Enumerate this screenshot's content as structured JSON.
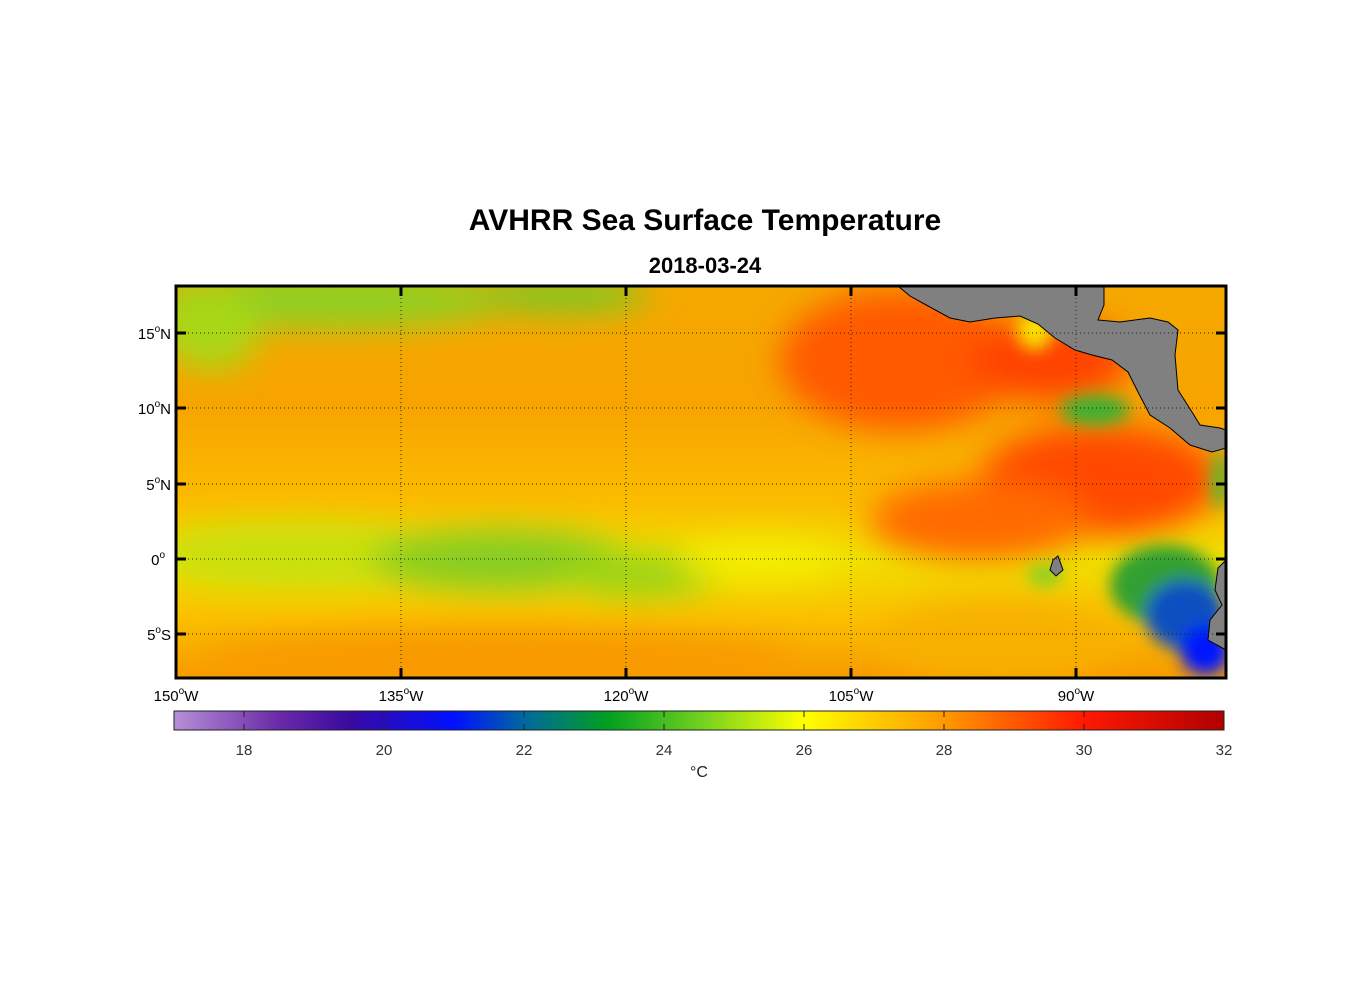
{
  "map": {
    "title": "AVHRR Sea Surface Temperature",
    "subtitle": "2018-03-24",
    "longitude_ticks": [
      {
        "deg": "150",
        "hemi": "W",
        "value": -150
      },
      {
        "deg": "135",
        "hemi": "W",
        "value": -135
      },
      {
        "deg": "120",
        "hemi": "W",
        "value": -120
      },
      {
        "deg": "105",
        "hemi": "W",
        "value": -105
      },
      {
        "deg": "90",
        "hemi": "W",
        "value": -90
      }
    ],
    "latitude_ticks": [
      {
        "deg": "15",
        "hemi": "N",
        "value": 15
      },
      {
        "deg": "10",
        "hemi": "N",
        "value": 10
      },
      {
        "deg": "5",
        "hemi": "N",
        "value": 5
      },
      {
        "deg": "0",
        "hemi": "",
        "value": 0
      },
      {
        "deg": "5",
        "hemi": "S",
        "value": -5
      }
    ],
    "lon_range": [
      -150,
      -80
    ],
    "lat_range": [
      -8,
      18
    ],
    "grid": true,
    "land_color": "#808080"
  },
  "colorbar": {
    "unit": "°C",
    "range": [
      17,
      32
    ],
    "ticks": [
      "18",
      "20",
      "22",
      "24",
      "26",
      "28",
      "30",
      "32"
    ],
    "stops": [
      {
        "v": 17,
        "c": "#b58fd6"
      },
      {
        "v": 18.5,
        "c": "#6a2aa8"
      },
      {
        "v": 19.5,
        "c": "#3a0aa0"
      },
      {
        "v": 21,
        "c": "#0010ff"
      },
      {
        "v": 22,
        "c": "#0068a0"
      },
      {
        "v": 23.2,
        "c": "#00a020"
      },
      {
        "v": 24.5,
        "c": "#70d020"
      },
      {
        "v": 26,
        "c": "#ffff00"
      },
      {
        "v": 28,
        "c": "#ff9a00"
      },
      {
        "v": 30,
        "c": "#ff1800"
      },
      {
        "v": 32,
        "c": "#b00000"
      }
    ]
  }
}
